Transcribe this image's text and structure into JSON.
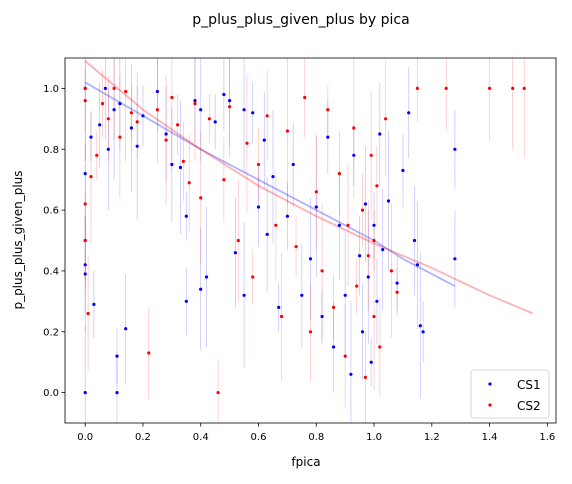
{
  "chart_data": {
    "type": "scatter",
    "title": "p_plus_plus_given_plus by pica",
    "xlabel": "fpica",
    "ylabel": "p_plus_plus_given_plus",
    "xlim": [
      -0.07,
      1.63
    ],
    "ylim": [
      -0.1,
      1.1
    ],
    "xticks": [
      0.0,
      0.2,
      0.4,
      0.6,
      0.8,
      1.0,
      1.2,
      1.4,
      1.6
    ],
    "xtick_labels": [
      "0.0",
      "0.2",
      "0.4",
      "0.6",
      "0.8",
      "1.0",
      "1.2",
      "1.4",
      "1.6"
    ],
    "yticks": [
      0.0,
      0.2,
      0.4,
      0.6,
      0.8,
      1.0
    ],
    "ytick_labels": [
      "0.0",
      "0.2",
      "0.4",
      "0.6",
      "0.8",
      "1.0"
    ],
    "grid": false,
    "legend": {
      "position": "bottom-right"
    },
    "series": [
      {
        "name": "CS1",
        "color": "#0000ff",
        "points_visible": [
          [
            0.0,
            1.0
          ],
          [
            0.0,
            0.72
          ],
          [
            0.0,
            0.5
          ],
          [
            0.0,
            0.42
          ],
          [
            0.0,
            0.39
          ],
          [
            0.0,
            0.0
          ],
          [
            0.02,
            0.84
          ],
          [
            0.03,
            0.29
          ],
          [
            0.05,
            0.88
          ],
          [
            0.07,
            1.0
          ],
          [
            0.08,
            0.8
          ],
          [
            0.1,
            0.93
          ],
          [
            0.11,
            0.12
          ],
          [
            0.11,
            0.0
          ],
          [
            0.12,
            0.95
          ],
          [
            0.14,
            0.21
          ],
          [
            0.16,
            0.87
          ],
          [
            0.18,
            0.81
          ],
          [
            0.2,
            0.91
          ],
          [
            0.25,
            0.99
          ],
          [
            0.28,
            0.85
          ],
          [
            0.3,
            0.75
          ],
          [
            0.33,
            0.74
          ],
          [
            0.35,
            0.58
          ],
          [
            0.35,
            0.3
          ],
          [
            0.38,
            0.96
          ],
          [
            0.4,
            0.93
          ],
          [
            0.4,
            0.34
          ],
          [
            0.42,
            0.38
          ],
          [
            0.45,
            0.89
          ],
          [
            0.48,
            0.98
          ],
          [
            0.5,
            0.96
          ],
          [
            0.52,
            0.46
          ],
          [
            0.55,
            0.93
          ],
          [
            0.55,
            0.32
          ],
          [
            0.58,
            0.92
          ],
          [
            0.6,
            0.61
          ],
          [
            0.62,
            0.83
          ],
          [
            0.63,
            0.52
          ],
          [
            0.65,
            0.71
          ],
          [
            0.67,
            0.28
          ],
          [
            0.7,
            0.58
          ],
          [
            0.72,
            0.75
          ],
          [
            0.75,
            0.32
          ],
          [
            0.78,
            0.44
          ],
          [
            0.8,
            0.61
          ],
          [
            0.82,
            0.25
          ],
          [
            0.84,
            0.84
          ],
          [
            0.86,
            0.15
          ],
          [
            0.88,
            0.55
          ],
          [
            0.9,
            0.32
          ],
          [
            0.92,
            0.06
          ],
          [
            0.93,
            0.78
          ],
          [
            0.95,
            0.45
          ],
          [
            0.96,
            0.2
          ],
          [
            0.97,
            0.62
          ],
          [
            0.98,
            0.38
          ],
          [
            0.99,
            0.1
          ],
          [
            1.0,
            0.55
          ],
          [
            1.01,
            0.3
          ],
          [
            1.02,
            0.85
          ],
          [
            1.03,
            0.47
          ],
          [
            1.05,
            0.63
          ],
          [
            1.08,
            0.36
          ],
          [
            1.1,
            0.73
          ],
          [
            1.12,
            0.92
          ],
          [
            1.14,
            0.5
          ],
          [
            1.15,
            0.42
          ],
          [
            1.16,
            0.22
          ],
          [
            1.17,
            0.2
          ],
          [
            1.28,
            0.8
          ],
          [
            1.28,
            0.44
          ]
        ]
      },
      {
        "name": "CS2",
        "color": "#ff0000",
        "points_visible": [
          [
            0.0,
            1.0
          ],
          [
            0.0,
            0.96
          ],
          [
            0.0,
            0.62
          ],
          [
            0.0,
            0.5
          ],
          [
            0.01,
            0.26
          ],
          [
            0.02,
            0.71
          ],
          [
            0.04,
            0.78
          ],
          [
            0.06,
            0.95
          ],
          [
            0.08,
            0.9
          ],
          [
            0.1,
            1.0
          ],
          [
            0.12,
            0.84
          ],
          [
            0.14,
            0.99
          ],
          [
            0.16,
            0.92
          ],
          [
            0.18,
            0.89
          ],
          [
            0.22,
            0.13
          ],
          [
            0.25,
            0.93
          ],
          [
            0.28,
            0.83
          ],
          [
            0.3,
            0.97
          ],
          [
            0.32,
            0.88
          ],
          [
            0.34,
            0.76
          ],
          [
            0.36,
            0.69
          ],
          [
            0.38,
            0.95
          ],
          [
            0.4,
            0.64
          ],
          [
            0.43,
            0.9
          ],
          [
            0.46,
            0.0
          ],
          [
            0.48,
            0.7
          ],
          [
            0.5,
            0.94
          ],
          [
            0.53,
            0.5
          ],
          [
            0.56,
            0.82
          ],
          [
            0.58,
            0.38
          ],
          [
            0.6,
            0.75
          ],
          [
            0.63,
            0.91
          ],
          [
            0.66,
            0.55
          ],
          [
            0.68,
            0.25
          ],
          [
            0.7,
            0.86
          ],
          [
            0.73,
            0.48
          ],
          [
            0.76,
            0.97
          ],
          [
            0.78,
            0.2
          ],
          [
            0.8,
            0.66
          ],
          [
            0.82,
            0.4
          ],
          [
            0.84,
            0.93
          ],
          [
            0.86,
            0.28
          ],
          [
            0.88,
            0.72
          ],
          [
            0.9,
            0.12
          ],
          [
            0.91,
            0.55
          ],
          [
            0.93,
            0.87
          ],
          [
            0.94,
            0.35
          ],
          [
            0.96,
            0.6
          ],
          [
            0.97,
            0.05
          ],
          [
            0.98,
            0.45
          ],
          [
            0.99,
            0.78
          ],
          [
            1.0,
            0.25
          ],
          [
            1.0,
            0.5
          ],
          [
            1.01,
            0.68
          ],
          [
            1.02,
            0.15
          ],
          [
            1.04,
            0.9
          ],
          [
            1.06,
            0.4
          ],
          [
            1.08,
            0.33
          ],
          [
            1.15,
            1.0
          ],
          [
            1.25,
            1.0
          ],
          [
            1.4,
            1.0
          ],
          [
            1.48,
            1.0
          ],
          [
            1.52,
            1.0
          ]
        ]
      }
    ],
    "trend_lines": [
      {
        "series": "CS1",
        "color": "#0000ff",
        "alpha": 0.3,
        "points": [
          [
            0.0,
            1.02
          ],
          [
            0.2,
            0.91
          ],
          [
            0.4,
            0.8
          ],
          [
            0.6,
            0.7
          ],
          [
            0.8,
            0.6
          ],
          [
            1.0,
            0.5
          ],
          [
            1.1,
            0.44
          ],
          [
            1.28,
            0.35
          ]
        ]
      },
      {
        "series": "CS2",
        "color": "#ff0000",
        "alpha": 0.3,
        "points": [
          [
            0.0,
            1.09
          ],
          [
            0.2,
            0.93
          ],
          [
            0.4,
            0.8
          ],
          [
            0.6,
            0.68
          ],
          [
            0.8,
            0.58
          ],
          [
            1.0,
            0.49
          ],
          [
            1.2,
            0.41
          ],
          [
            1.4,
            0.32
          ],
          [
            1.55,
            0.26
          ]
        ]
      }
    ]
  }
}
